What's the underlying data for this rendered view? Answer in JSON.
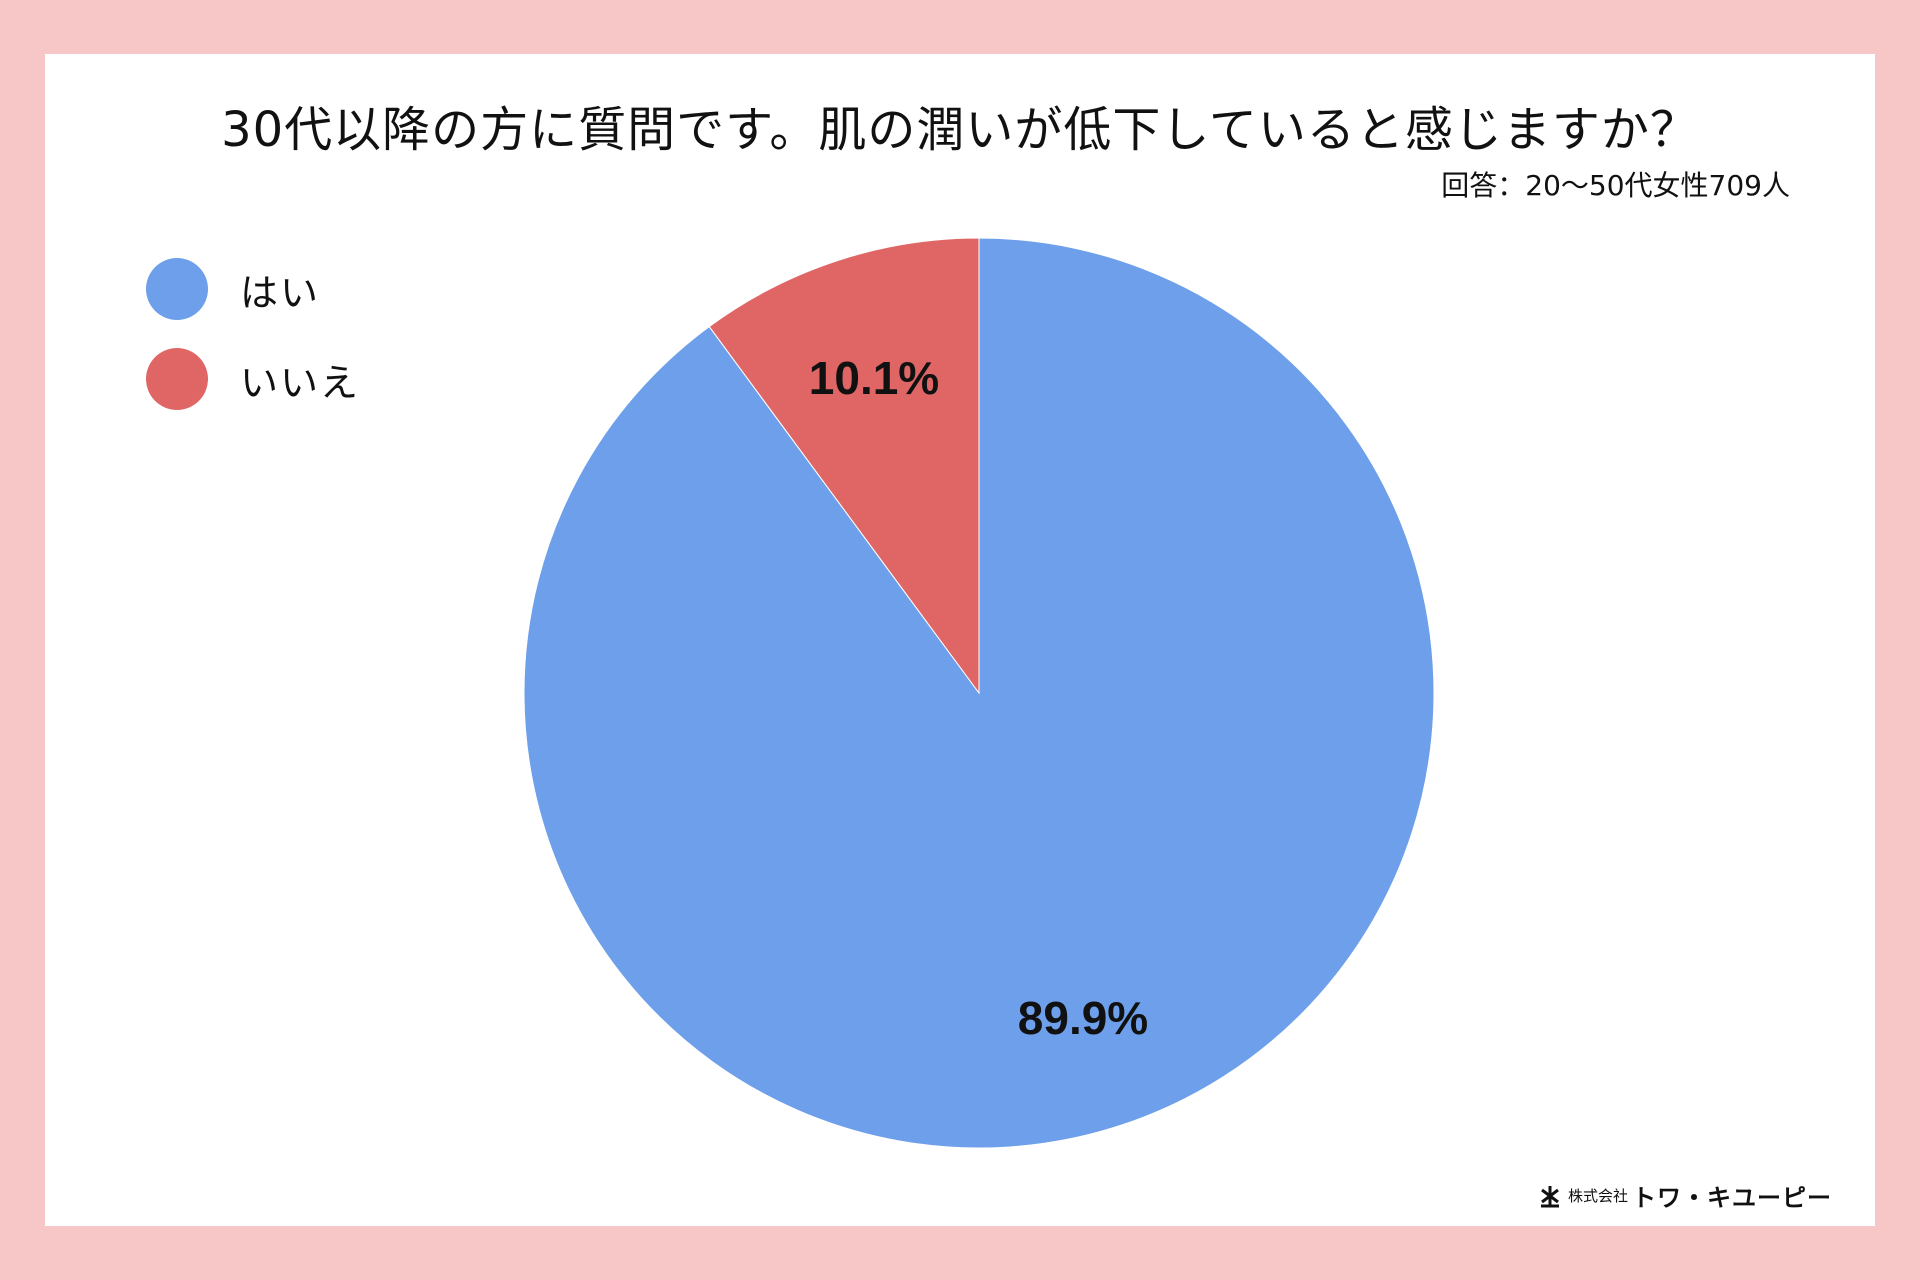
{
  "colors": {
    "background": "#f7c6c7",
    "card": "#ffffff",
    "yes": "#6e9fea",
    "no": "#e06666"
  },
  "chart_data": {
    "type": "pie",
    "title": "30代以降の方に質問です。肌の潤いが低下していると感じますか？",
    "subtitle": "回答：20〜50代女性709人",
    "legend_position": "top-left",
    "slices": [
      {
        "label": "はい",
        "value": 89.9,
        "value_label": "89.9%",
        "color": "#6e9fea"
      },
      {
        "label": "いいえ",
        "value": 10.1,
        "value_label": "10.1%",
        "color": "#e06666"
      }
    ]
  },
  "logo": {
    "icon": "company-logo-icon",
    "company_prefix": "株式会社",
    "company_name": "トワ・キユーピー"
  }
}
